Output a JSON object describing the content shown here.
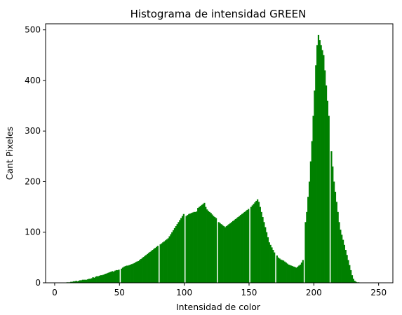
{
  "chart_data": {
    "type": "bar",
    "title": "Histograma de intensidad GREEN",
    "xlabel": "Intensidad de color",
    "ylabel": "Cant Pixeles",
    "xlim": [
      -7,
      261
    ],
    "ylim": [
      0,
      512
    ],
    "x_ticks": [
      0,
      50,
      100,
      150,
      200,
      250
    ],
    "y_ticks": [
      0,
      100,
      200,
      300,
      400,
      500
    ],
    "grid": false,
    "legend": "none",
    "bar_color": "#008000",
    "bin_width": 1,
    "bin_start": 0,
    "values": [
      0,
      0,
      0,
      0,
      0,
      0,
      0,
      0,
      0,
      1,
      1,
      1,
      2,
      2,
      3,
      3,
      4,
      3,
      4,
      5,
      5,
      6,
      6,
      6,
      6,
      7,
      8,
      8,
      9,
      11,
      10,
      12,
      13,
      13,
      14,
      15,
      15,
      16,
      17,
      18,
      19,
      20,
      21,
      22,
      23,
      22,
      24,
      25,
      25,
      26,
      0,
      28,
      30,
      32,
      33,
      34,
      34,
      35,
      36,
      37,
      38,
      39,
      41,
      42,
      43,
      45,
      47,
      49,
      51,
      53,
      55,
      57,
      59,
      61,
      63,
      65,
      67,
      69,
      71,
      73,
      0,
      76,
      78,
      80,
      82,
      84,
      86,
      88,
      92,
      96,
      100,
      104,
      108,
      112,
      116,
      120,
      124,
      128,
      132,
      136,
      0,
      132,
      134,
      136,
      137,
      138,
      139,
      140,
      140,
      141,
      148,
      150,
      152,
      154,
      156,
      158,
      150,
      145,
      142,
      140,
      138,
      135,
      132,
      130,
      128,
      0,
      120,
      118,
      116,
      114,
      112,
      110,
      112,
      114,
      116,
      118,
      120,
      122,
      124,
      126,
      128,
      130,
      132,
      134,
      136,
      138,
      140,
      142,
      144,
      146,
      0,
      150,
      153,
      156,
      159,
      162,
      165,
      160,
      150,
      140,
      130,
      120,
      110,
      100,
      90,
      80,
      75,
      70,
      65,
      60,
      0,
      54,
      50,
      48,
      46,
      45,
      44,
      42,
      40,
      38,
      36,
      35,
      34,
      33,
      32,
      31,
      30,
      32,
      34,
      36,
      40,
      45,
      0,
      120,
      140,
      170,
      200,
      240,
      280,
      330,
      380,
      430,
      470,
      490,
      480,
      470,
      460,
      450,
      420,
      390,
      360,
      330,
      0,
      260,
      230,
      200,
      180,
      160,
      140,
      120,
      105,
      95,
      85,
      75,
      65,
      55,
      45,
      35,
      25,
      15,
      8,
      4,
      2,
      1,
      1,
      0,
      0,
      0,
      0,
      0,
      0,
      0,
      0,
      0,
      0,
      0,
      0
    ]
  }
}
